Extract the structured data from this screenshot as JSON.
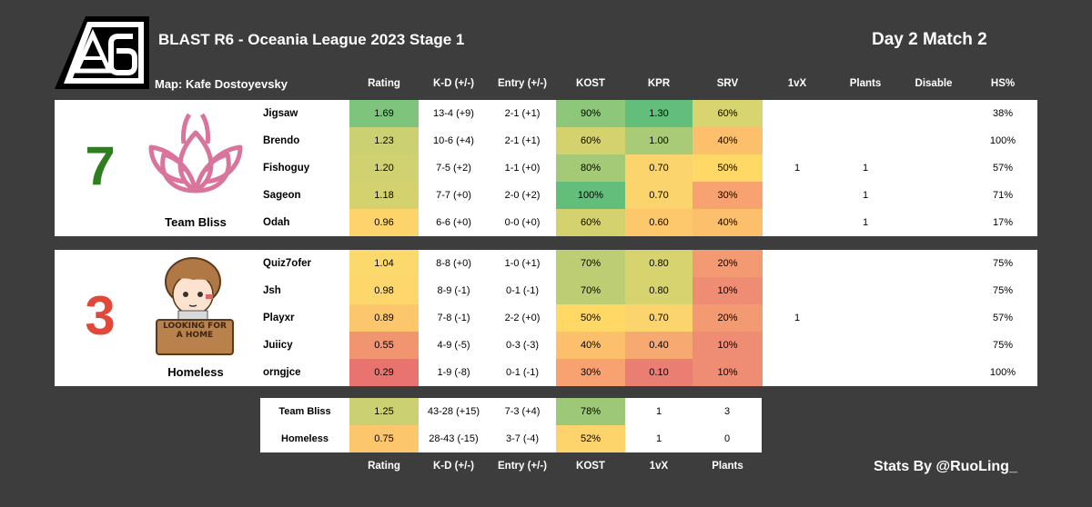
{
  "header": {
    "title": "BLAST R6 - Oceania League 2023 Stage 1",
    "match": "Day 2 Match 2",
    "map": "Map: Kafe Dostoyevsky"
  },
  "columns": [
    "Rating",
    "K-D (+/-)",
    "Entry (+/-)",
    "KOST",
    "KPR",
    "SRV",
    "1vX",
    "Plants",
    "Disable",
    "HS%"
  ],
  "teams": [
    {
      "name": "Team Bliss",
      "score": "7",
      "score_color": "#2e7d1f",
      "logo": "lotus-logo",
      "players": [
        {
          "name": "Jigsaw",
          "rating": "1.69",
          "kd": "13-4 (+9)",
          "entry": "2-1 (+1)",
          "kost": "90%",
          "kpr": "1.30",
          "srv": "60%",
          "onevx": "",
          "plants": "",
          "disable": "",
          "hs": "38%",
          "colors": {
            "rating": "#7ec47d",
            "kd": "#ffffff",
            "entry": "#ffffff",
            "kost": "#8cc77a",
            "kpr": "#63be7b",
            "srv": "#d8d46f"
          }
        },
        {
          "name": "Brendo",
          "rating": "1.23",
          "kd": "10-6 (+4)",
          "entry": "2-1 (+1)",
          "kost": "60%",
          "kpr": "1.00",
          "srv": "40%",
          "onevx": "",
          "plants": "",
          "disable": "",
          "hs": "100%",
          "colors": {
            "rating": "#cbd072",
            "kd": "#ffffff",
            "entry": "#ffffff",
            "kost": "#d4d26f",
            "kpr": "#a9ca77",
            "srv": "#fcc06c"
          }
        },
        {
          "name": "Fishoguy",
          "rating": "1.20",
          "kd": "7-5 (+2)",
          "entry": "1-1 (+0)",
          "kost": "80%",
          "kpr": "0.70",
          "srv": "50%",
          "onevx": "1",
          "plants": "1",
          "disable": "",
          "hs": "57%",
          "colors": {
            "rating": "#d0d170",
            "kd": "#ffffff",
            "entry": "#ffffff",
            "kost": "#a4c977",
            "kpr": "#fcd46d",
            "srv": "#ffd866"
          }
        },
        {
          "name": "Sageon",
          "rating": "1.18",
          "kd": "7-7 (+0)",
          "entry": "2-0 (+2)",
          "kost": "100%",
          "kpr": "0.70",
          "srv": "30%",
          "onevx": "",
          "plants": "1",
          "disable": "",
          "hs": "71%",
          "colors": {
            "rating": "#d3d26f",
            "kd": "#ffffff",
            "entry": "#ffffff",
            "kost": "#63be7b",
            "kpr": "#fcd46d",
            "srv": "#f8a271"
          }
        },
        {
          "name": "Odah",
          "rating": "0.96",
          "kd": "6-6 (+0)",
          "entry": "0-0 (+0)",
          "kost": "60%",
          "kpr": "0.60",
          "srv": "40%",
          "onevx": "",
          "plants": "1",
          "disable": "",
          "hs": "17%",
          "colors": {
            "rating": "#fdd46c",
            "kd": "#ffffff",
            "entry": "#ffffff",
            "kost": "#d4d26f",
            "kpr": "#fdc76c",
            "srv": "#fcc06c"
          }
        }
      ]
    },
    {
      "name": "Homeless",
      "score": "3",
      "score_color": "#e0483a",
      "logo": "homeless-mascot-logo",
      "sign_text": "LOOKING FOR A HOME",
      "players": [
        {
          "name": "Quiz7ofer",
          "rating": "1.04",
          "kd": "8-8 (+0)",
          "entry": "1-0 (+1)",
          "kost": "70%",
          "kpr": "0.80",
          "srv": "20%",
          "onevx": "",
          "plants": "",
          "disable": "",
          "hs": "75%",
          "colors": {
            "rating": "#fbd96d",
            "kd": "#ffffff",
            "entry": "#ffffff",
            "kost": "#bccd73",
            "kpr": "#d7d36f",
            "srv": "#f39a73"
          }
        },
        {
          "name": "Jsh",
          "rating": "0.98",
          "kd": "8-9 (-1)",
          "entry": "0-1 (-1)",
          "kost": "70%",
          "kpr": "0.80",
          "srv": "10%",
          "onevx": "",
          "plants": "",
          "disable": "",
          "hs": "75%",
          "colors": {
            "rating": "#fdd66c",
            "kd": "#ffffff",
            "entry": "#ffffff",
            "kost": "#bccd73",
            "kpr": "#d7d36f",
            "srv": "#ee8d74"
          }
        },
        {
          "name": "Playxr",
          "rating": "0.89",
          "kd": "7-8 (-1)",
          "entry": "2-2 (+0)",
          "kost": "50%",
          "kpr": "0.70",
          "srv": "20%",
          "onevx": "1",
          "plants": "",
          "disable": "",
          "hs": "57%",
          "colors": {
            "rating": "#fcc66c",
            "kd": "#ffffff",
            "entry": "#ffffff",
            "kost": "#ffd866",
            "kpr": "#fcd46d",
            "srv": "#f39a73"
          }
        },
        {
          "name": "Juiicy",
          "rating": "0.55",
          "kd": "4-9 (-5)",
          "entry": "0-3 (-3)",
          "kost": "40%",
          "kpr": "0.40",
          "srv": "10%",
          "onevx": "",
          "plants": "",
          "disable": "",
          "hs": "75%",
          "colors": {
            "rating": "#f0956f",
            "kd": "#ffffff",
            "entry": "#ffffff",
            "kost": "#fcc06c",
            "kpr": "#f6a971",
            "srv": "#ee8d74"
          }
        },
        {
          "name": "orngjce",
          "rating": "0.29",
          "kd": "1-9 (-8)",
          "entry": "0-1 (-1)",
          "kost": "30%",
          "kpr": "0.10",
          "srv": "10%",
          "onevx": "",
          "plants": "",
          "disable": "",
          "hs": "100%",
          "colors": {
            "rating": "#e8736f",
            "kd": "#ffffff",
            "entry": "#ffffff",
            "kost": "#f8a271",
            "kpr": "#ea7e73",
            "srv": "#ee8d74"
          }
        }
      ]
    }
  ],
  "summary": {
    "columns": [
      "Rating",
      "K-D (+/-)",
      "Entry (+/-)",
      "KOST",
      "1vX",
      "Plants"
    ],
    "rows": [
      {
        "name": "Team Bliss",
        "rating": "1.25",
        "kd": "43-28 (+15)",
        "entry": "7-3 (+4)",
        "kost": "78%",
        "onevx": "1",
        "plants": "3",
        "colors": {
          "rating": "#cbd072",
          "kost": "#9cc877"
        }
      },
      {
        "name": "Homeless",
        "rating": "0.75",
        "kd": "28-43 (-15)",
        "entry": "3-7 (-4)",
        "kost": "52%",
        "onevx": "1",
        "plants": "0",
        "colors": {
          "rating": "#fcc66c",
          "kost": "#fdd46c"
        }
      }
    ]
  },
  "credit": "Stats By @RuoLing_",
  "logo_icon": "blast-r6-logo"
}
